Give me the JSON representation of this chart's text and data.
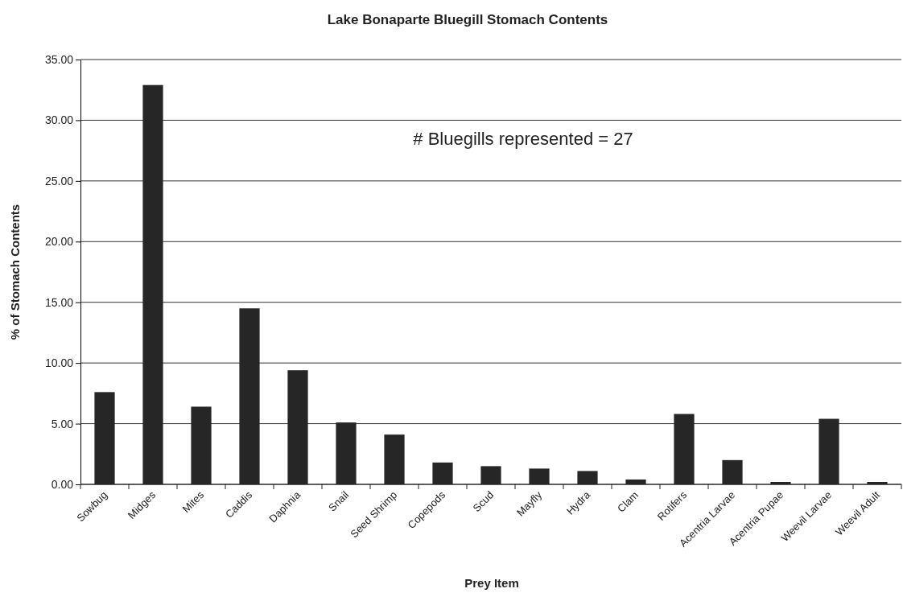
{
  "chart_data": {
    "type": "bar",
    "title": "Lake Bonaparte Bluegill Stomach Contents",
    "xlabel": "Prey Item",
    "ylabel": "% of Stomach Contents",
    "categories": [
      "Sowbug",
      "Midges",
      "Mites",
      "Caddis",
      "Daphnia",
      "Snail",
      "Seed Shrimp",
      "Copepods",
      "Scud",
      "Mayfly",
      "Hydra",
      "Clam",
      "Rotifers",
      "Acentria Larvae",
      "Acentria Pupae",
      "Weevil Larvae",
      "Weevil Adult"
    ],
    "values": [
      7.6,
      32.9,
      6.4,
      14.5,
      9.4,
      5.1,
      4.1,
      1.8,
      1.5,
      1.3,
      1.1,
      0.4,
      5.8,
      2.0,
      0.2,
      5.4,
      0.2
    ],
    "color": "#262626",
    "ylim": [
      0,
      35
    ],
    "yticks": [
      {
        "value": 0,
        "label": "0.00"
      },
      {
        "value": 5,
        "label": "5.00"
      },
      {
        "value": 10,
        "label": "10.00"
      },
      {
        "value": 15,
        "label": "15.00"
      },
      {
        "value": 20,
        "label": "20.00"
      },
      {
        "value": 25,
        "label": "25.00"
      },
      {
        "value": 30,
        "label": "30.00"
      },
      {
        "value": 35,
        "label": "35.00"
      }
    ],
    "grid": "y",
    "annotations": [
      "# Bluegills represented = 27"
    ]
  }
}
